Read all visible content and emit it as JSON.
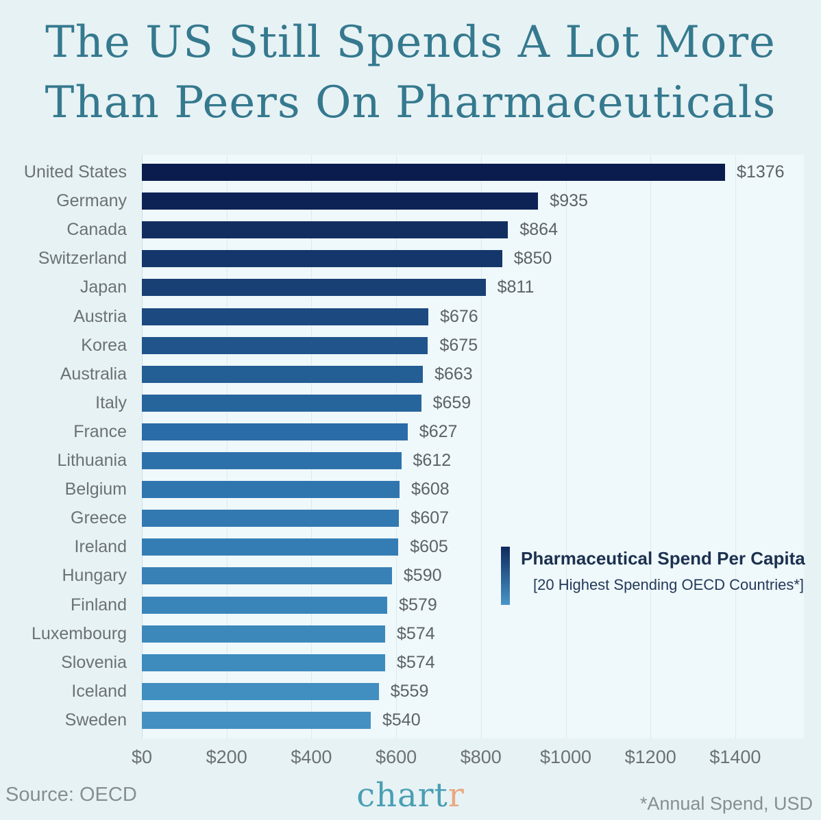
{
  "page": {
    "background": "#e7f2f5",
    "title_line1": "The US Still Spends A Lot More",
    "title_line2": "Than Peers On Pharmaceuticals",
    "title_color": "#35798e"
  },
  "chart_data": {
    "type": "bar",
    "orientation": "horizontal",
    "title": "The US Still Spends A Lot More Than Peers On Pharmaceuticals",
    "categories": [
      "United States",
      "Germany",
      "Canada",
      "Switzerland",
      "Japan",
      "Austria",
      "Korea",
      "Australia",
      "Italy",
      "France",
      "Lithuania",
      "Belgium",
      "Greece",
      "Ireland",
      "Hungary",
      "Finland",
      "Luxembourg",
      "Slovenia",
      "Iceland",
      "Sweden"
    ],
    "values": [
      1376,
      935,
      864,
      850,
      811,
      676,
      675,
      663,
      659,
      627,
      612,
      608,
      607,
      605,
      590,
      579,
      574,
      574,
      559,
      540
    ],
    "value_labels": [
      "$1376",
      "$935",
      "$864",
      "$850",
      "$811",
      "$676",
      "$675",
      "$663",
      "$659",
      "$627",
      "$612",
      "$608",
      "$607",
      "$605",
      "$590",
      "$579",
      "$574",
      "$574",
      "$559",
      "$540"
    ],
    "bar_colors": [
      "#0a1c4d",
      "#0e2355",
      "#122d60",
      "#15366b",
      "#194074",
      "#1c4a80",
      "#20548b",
      "#235e94",
      "#26659c",
      "#2a6ca8",
      "#2d71ab",
      "#2f75ae",
      "#3279b1",
      "#347db4",
      "#3781b6",
      "#3985b9",
      "#3c88bb",
      "#3e8bbe",
      "#418ec0",
      "#4490c2"
    ],
    "xlim": [
      0,
      1400
    ],
    "x_tick_values": [
      0,
      200,
      400,
      600,
      800,
      1000,
      1200,
      1400
    ],
    "x_tick_labels": [
      "$0",
      "$200",
      "$400",
      "$600",
      "$800",
      "$1000",
      "$1200",
      "$1400"
    ],
    "grid": true,
    "legend_position": "middle-right",
    "legend": {
      "title": "Pharmaceutical Spend Per Capita",
      "subtitle": "[20 Highest Spending OECD Countries*]",
      "gradient_top": "#0e2a5c",
      "gradient_bottom": "#4995c8"
    }
  },
  "footer": {
    "source": "Source: OECD",
    "logo_main": "chart",
    "logo_accent": "r",
    "note": "*Annual Spend, USD"
  }
}
